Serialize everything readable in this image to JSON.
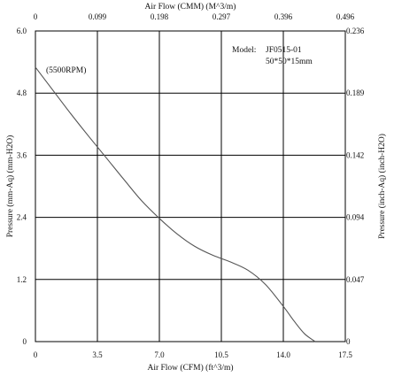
{
  "chart_data": {
    "type": "line",
    "top_axis": {
      "label": "Air Flow (CMM) (M^3/m)",
      "ticks": [
        "0",
        "0.099",
        "0.198",
        "0.297",
        "0.396",
        "0.496"
      ],
      "range": [
        0,
        0.496
      ]
    },
    "bottom_axis": {
      "label": "Air Flow (CFM) (ft^3/m)",
      "ticks": [
        "0",
        "3.5",
        "7.0",
        "10.5",
        "14.0",
        "17.5"
      ],
      "range": [
        0,
        17.5
      ]
    },
    "left_axis": {
      "label": "Pressure (mm-Aq) (mm-H2O)",
      "ticks": [
        "0",
        "1.2",
        "2.4",
        "3.6",
        "4.8",
        "6.0"
      ],
      "range": [
        0,
        6.0
      ]
    },
    "right_axis": {
      "label": "Pressure (inch-Aq) (inch-H2O)",
      "ticks": [
        "0",
        "0.047",
        "0.094",
        "0.142",
        "0.189",
        "0.236"
      ],
      "range": [
        0,
        0.236
      ]
    },
    "grid": true,
    "model_label": "Model:",
    "model_value": "JF0515-01",
    "size_value": "50*50*15mm",
    "series": [
      {
        "name": "(5500RPM)",
        "x": [
          0,
          1.0,
          2.0,
          3.0,
          4.0,
          5.0,
          6.0,
          7.0,
          8.0,
          9.0,
          10.0,
          11.0,
          12.0,
          13.0,
          14.0,
          14.6,
          15.2,
          15.8
        ],
        "y": [
          5.3,
          4.85,
          4.4,
          3.97,
          3.55,
          3.13,
          2.72,
          2.38,
          2.08,
          1.84,
          1.67,
          1.54,
          1.38,
          1.1,
          0.68,
          0.4,
          0.15,
          0.0
        ]
      }
    ]
  }
}
